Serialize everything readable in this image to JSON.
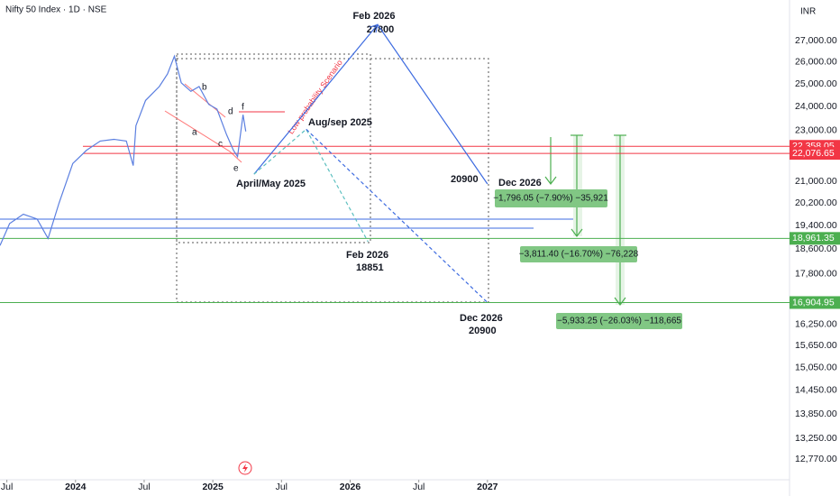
{
  "chart_data": {
    "type": "line",
    "title": "Nifty 50 Index · 1D · NSE",
    "currency": "INR",
    "log_scale": true,
    "grid": false,
    "xlim": [
      2023.45,
      2029.2
    ],
    "xticks": [
      {
        "value": 2023.5,
        "label": "Jul"
      },
      2024,
      {
        "value": 2024.5,
        "label": "Jul"
      },
      2025,
      {
        "value": 2025.5,
        "label": "Jul"
      },
      2026,
      {
        "value": 2026.5,
        "label": "Jul"
      },
      2027
    ],
    "ylim": [
      12350,
      29050
    ],
    "yticks": [
      {
        "value": 27000,
        "label": "27,000.00"
      },
      {
        "value": 26000,
        "label": "26,000.00"
      },
      {
        "value": 25000,
        "label": "25,000.00"
      },
      {
        "value": 24000,
        "label": "24,000.00"
      },
      {
        "value": 23000,
        "label": "23,000.00"
      },
      {
        "value": 21000,
        "label": "21,000.00"
      },
      {
        "value": 20200,
        "label": "20,200.00"
      },
      {
        "value": 19400,
        "label": "19,400.00"
      },
      {
        "value": 18600,
        "label": "18,600.00"
      },
      {
        "value": 17800,
        "label": "17,800.00"
      },
      {
        "value": 16250,
        "label": "16,250.00"
      },
      {
        "value": 15650,
        "label": "15,650.00"
      },
      {
        "value": 15050,
        "label": "15,050.00"
      },
      {
        "value": 14450,
        "label": "14,450.00"
      },
      {
        "value": 13850,
        "label": "13,850.00"
      },
      {
        "value": 13250,
        "label": "13,250.00"
      },
      {
        "value": 12770,
        "label": "12,770.00"
      }
    ],
    "series": [
      {
        "color": "#5b7fe0",
        "x": [
          2023.45,
          2023.52,
          2023.62,
          2023.72,
          2023.8,
          2023.88,
          2023.98,
          2024.08,
          2024.18,
          2024.28,
          2024.37,
          2024.42,
          2024.44,
          2024.51,
          2024.61,
          2024.67,
          2024.72,
          2024.77,
          2024.84,
          2024.9,
          2024.97,
          2025.03,
          2025.1,
          2025.15,
          2025.18,
          2025.22,
          2025.24
        ],
        "values": [
          18720,
          19470,
          19800,
          19630,
          18960,
          20200,
          21680,
          22200,
          22570,
          22640,
          22570,
          21600,
          23200,
          24270,
          24880,
          25450,
          26270,
          25050,
          24670,
          24880,
          24100,
          23900,
          22830,
          22200,
          21950,
          23660,
          22960
        ]
      },
      {
        "color": "#3d6be0",
        "x": [
          2025.3,
          2026.2,
          2027.0
        ],
        "values": [
          21270,
          27800,
          20900
        ]
      },
      {
        "color": "#5bbfbf",
        "dashed": true,
        "x": [
          2025.3,
          2025.68,
          2026.13
        ],
        "values": [
          21270,
          23050,
          18851
        ]
      },
      {
        "color": "#3d6be0",
        "dashed": true,
        "x": [
          2025.68,
          2027.0
        ],
        "values": [
          23050,
          16904.95
        ]
      }
    ],
    "levels": [
      {
        "value": 22358.05,
        "label": "22,358.05",
        "color": "#f23645"
      },
      {
        "value": 22076.65,
        "label": "22,076.65",
        "color": "#f23645"
      },
      {
        "value": 18961.35,
        "label": "18,961.35",
        "color": "#4caf50"
      },
      {
        "value": 16904.95,
        "label": "16,904.95",
        "color": "#4caf50"
      }
    ],
    "annotations": [
      "Feb 2026",
      "27800",
      "Aug/sep 2025",
      "April/May 2025",
      "20900",
      "Dec 2026",
      "Feb 2026",
      "18851",
      "Dec 2026",
      "20900",
      "Low probability Scenario"
    ],
    "waves": [
      "a",
      "b",
      "c",
      "d",
      "e",
      "f"
    ],
    "measures": [
      "−1,796.05 (−7.90%) −35,921",
      "−3,811.40 (−16.70%) −76,228",
      "−5,933.25 (−26.03%) −118,665"
    ]
  }
}
